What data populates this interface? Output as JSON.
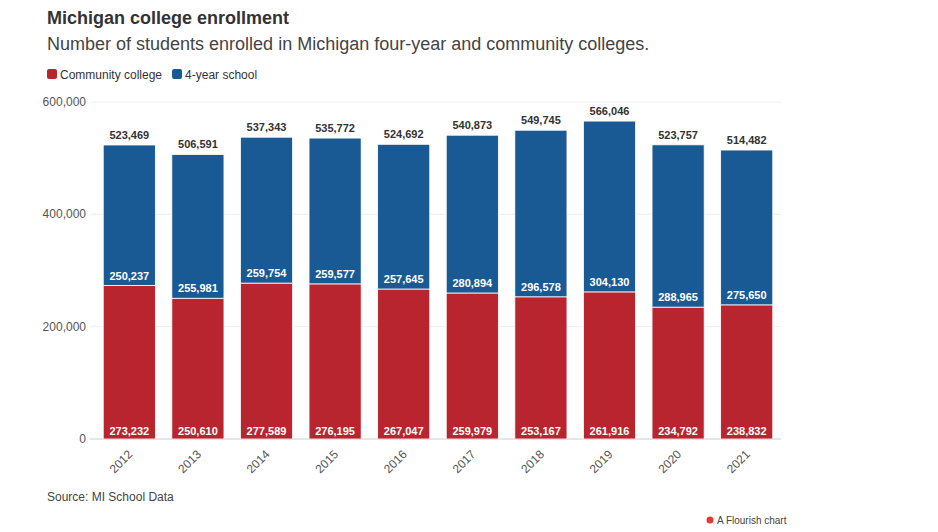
{
  "chart_data": {
    "type": "bar",
    "title": "Michigan college enrollment",
    "subtitle": "Number of students enrolled in Michigan four-year and community colleges.",
    "source": "Source: MI School Data",
    "credit": "A Flourish chart",
    "stacked": true,
    "data_labels": true,
    "grid": true,
    "legend": "top-left",
    "categories": [
      "2012",
      "2013",
      "2014",
      "2015",
      "2016",
      "2017",
      "2018",
      "2019",
      "2020",
      "2021"
    ],
    "series": [
      {
        "name": "Community college",
        "color": "#b8252e",
        "values": [
          273232,
          250610,
          277589,
          276195,
          267047,
          259979,
          253167,
          261916,
          234792,
          238832
        ],
        "value_labels": [
          "273,232",
          "250,610",
          "277,589",
          "276,195",
          "267,047",
          "259,979",
          "253,167",
          "261,916",
          "234,792",
          "238,832"
        ]
      },
      {
        "name": "4-year school",
        "color": "#1a5a94",
        "values": [
          250237,
          255981,
          259754,
          259577,
          257645,
          280894,
          296578,
          304130,
          288965,
          275650
        ],
        "value_labels": [
          "250,237",
          "255,981",
          "259,754",
          "259,577",
          "257,645",
          "280,894",
          "296,578",
          "304,130",
          "288,965",
          "275,650"
        ]
      }
    ],
    "totals": {
      "values": [
        523469,
        506591,
        537343,
        535772,
        524692,
        540873,
        549745,
        566046,
        523757,
        514482
      ],
      "value_labels": [
        "523,469",
        "506,591",
        "537,343",
        "535,772",
        "524,692",
        "540,873",
        "549,745",
        "566,046",
        "523,757",
        "514,482"
      ]
    },
    "ylim": [
      0,
      600000
    ],
    "yticks": [
      0,
      {
        "value": 200000,
        "label": "200,000"
      },
      {
        "value": 400000,
        "label": "400,000"
      },
      {
        "value": 600000,
        "label": "600,000"
      }
    ]
  }
}
